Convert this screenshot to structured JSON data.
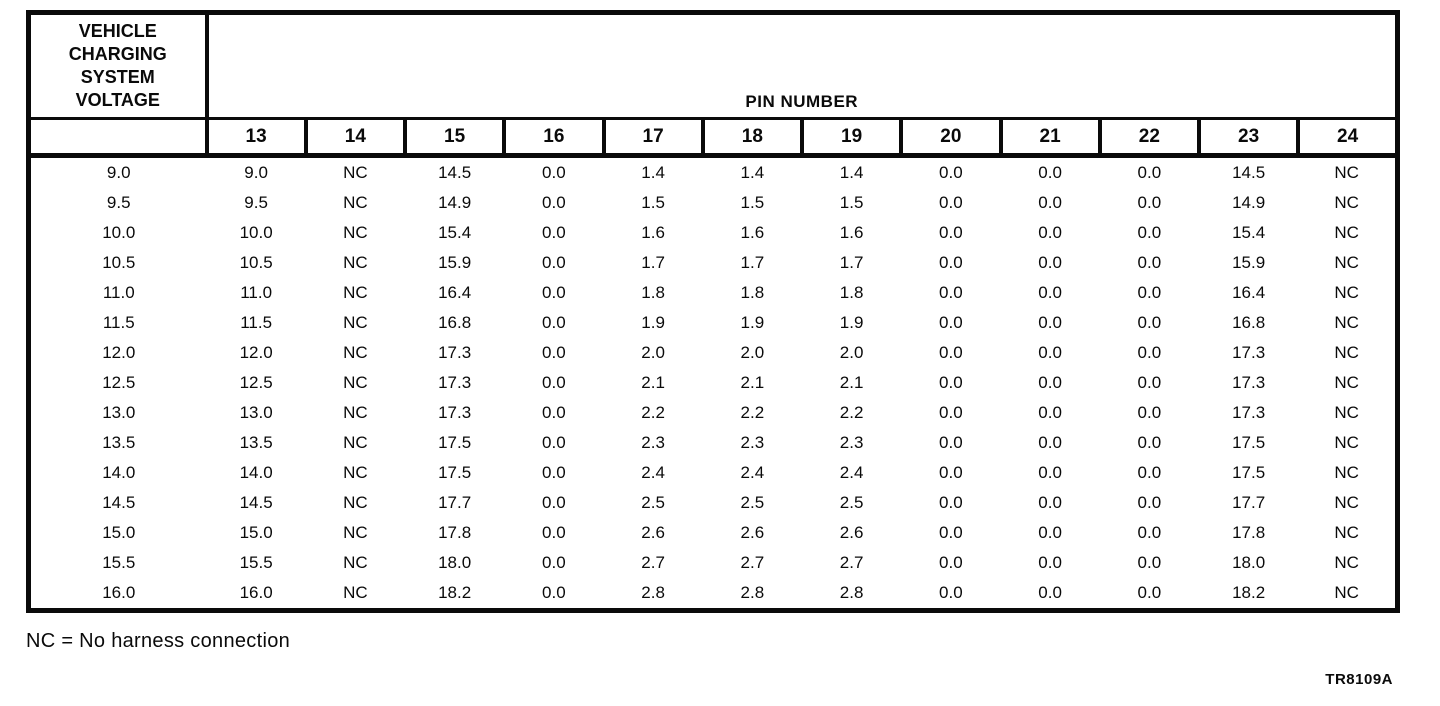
{
  "document": {
    "footnote": "NC = No harness connection",
    "figure_code": "TR8109A",
    "colors": {
      "ink": "#0a0a0a",
      "paper": "#ffffff"
    }
  },
  "table": {
    "corner_header_lines": [
      "VEHICLE",
      "CHARGING",
      "SYSTEM",
      "VOLTAGE"
    ],
    "pin_group_header": "PIN NUMBER",
    "pin_columns": [
      "13",
      "14",
      "15",
      "16",
      "17",
      "18",
      "19",
      "20",
      "21",
      "22",
      "23",
      "24"
    ],
    "rows": [
      {
        "voltage": "9.0",
        "values": [
          "9.0",
          "NC",
          "14.5",
          "0.0",
          "1.4",
          "1.4",
          "1.4",
          "0.0",
          "0.0",
          "0.0",
          "14.5",
          "NC"
        ]
      },
      {
        "voltage": "9.5",
        "values": [
          "9.5",
          "NC",
          "14.9",
          "0.0",
          "1.5",
          "1.5",
          "1.5",
          "0.0",
          "0.0",
          "0.0",
          "14.9",
          "NC"
        ]
      },
      {
        "voltage": "10.0",
        "values": [
          "10.0",
          "NC",
          "15.4",
          "0.0",
          "1.6",
          "1.6",
          "1.6",
          "0.0",
          "0.0",
          "0.0",
          "15.4",
          "NC"
        ]
      },
      {
        "voltage": "10.5",
        "values": [
          "10.5",
          "NC",
          "15.9",
          "0.0",
          "1.7",
          "1.7",
          "1.7",
          "0.0",
          "0.0",
          "0.0",
          "15.9",
          "NC"
        ]
      },
      {
        "voltage": "11.0",
        "values": [
          "11.0",
          "NC",
          "16.4",
          "0.0",
          "1.8",
          "1.8",
          "1.8",
          "0.0",
          "0.0",
          "0.0",
          "16.4",
          "NC"
        ]
      },
      {
        "voltage": "11.5",
        "values": [
          "11.5",
          "NC",
          "16.8",
          "0.0",
          "1.9",
          "1.9",
          "1.9",
          "0.0",
          "0.0",
          "0.0",
          "16.8",
          "NC"
        ]
      },
      {
        "voltage": "12.0",
        "values": [
          "12.0",
          "NC",
          "17.3",
          "0.0",
          "2.0",
          "2.0",
          "2.0",
          "0.0",
          "0.0",
          "0.0",
          "17.3",
          "NC"
        ]
      },
      {
        "voltage": "12.5",
        "values": [
          "12.5",
          "NC",
          "17.3",
          "0.0",
          "2.1",
          "2.1",
          "2.1",
          "0.0",
          "0.0",
          "0.0",
          "17.3",
          "NC"
        ]
      },
      {
        "voltage": "13.0",
        "values": [
          "13.0",
          "NC",
          "17.3",
          "0.0",
          "2.2",
          "2.2",
          "2.2",
          "0.0",
          "0.0",
          "0.0",
          "17.3",
          "NC"
        ]
      },
      {
        "voltage": "13.5",
        "values": [
          "13.5",
          "NC",
          "17.5",
          "0.0",
          "2.3",
          "2.3",
          "2.3",
          "0.0",
          "0.0",
          "0.0",
          "17.5",
          "NC"
        ]
      },
      {
        "voltage": "14.0",
        "values": [
          "14.0",
          "NC",
          "17.5",
          "0.0",
          "2.4",
          "2.4",
          "2.4",
          "0.0",
          "0.0",
          "0.0",
          "17.5",
          "NC"
        ]
      },
      {
        "voltage": "14.5",
        "values": [
          "14.5",
          "NC",
          "17.7",
          "0.0",
          "2.5",
          "2.5",
          "2.5",
          "0.0",
          "0.0",
          "0.0",
          "17.7",
          "NC"
        ]
      },
      {
        "voltage": "15.0",
        "values": [
          "15.0",
          "NC",
          "17.8",
          "0.0",
          "2.6",
          "2.6",
          "2.6",
          "0.0",
          "0.0",
          "0.0",
          "17.8",
          "NC"
        ]
      },
      {
        "voltage": "15.5",
        "values": [
          "15.5",
          "NC",
          "18.0",
          "0.0",
          "2.7",
          "2.7",
          "2.7",
          "0.0",
          "0.0",
          "0.0",
          "18.0",
          "NC"
        ]
      },
      {
        "voltage": "16.0",
        "values": [
          "16.0",
          "NC",
          "18.2",
          "0.0",
          "2.8",
          "2.8",
          "2.8",
          "0.0",
          "0.0",
          "0.0",
          "18.2",
          "NC"
        ]
      }
    ]
  }
}
